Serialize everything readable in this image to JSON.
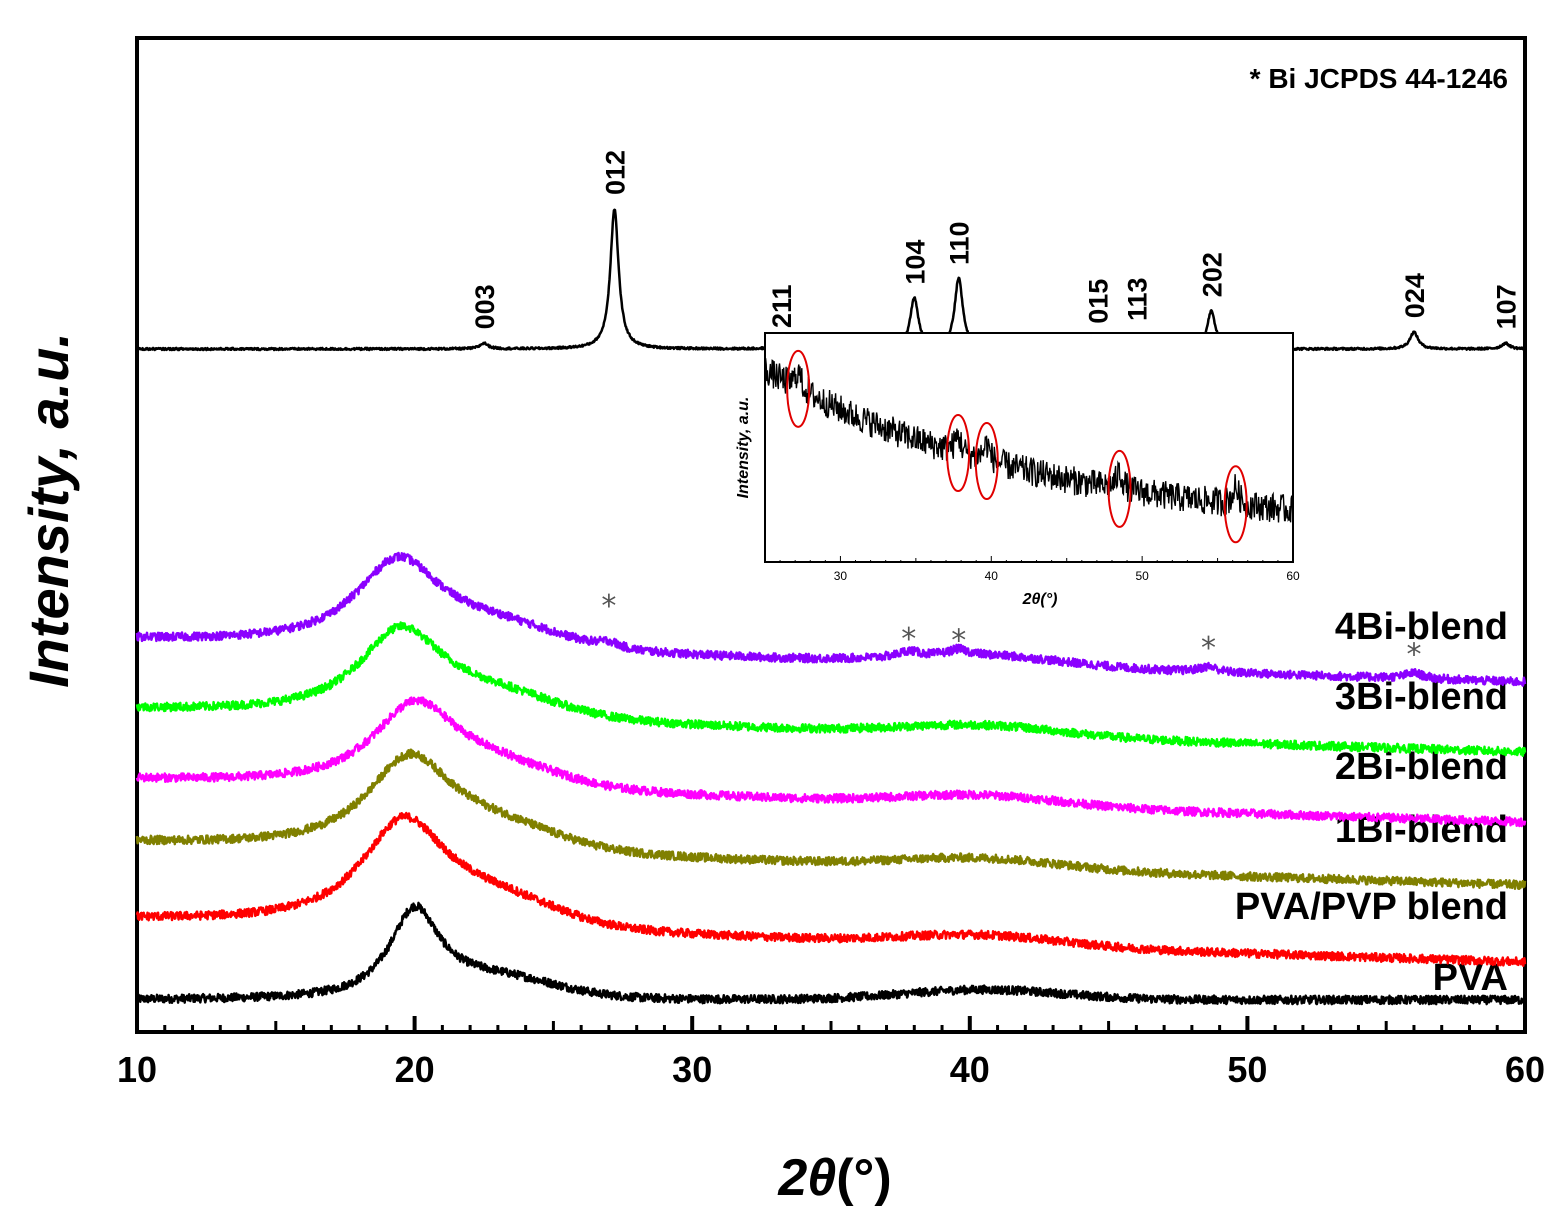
{
  "chart_data": {
    "type": "line",
    "title": "",
    "xlabel_italic": "2θ",
    "xlabel_unit": "(°)",
    "ylabel": "Intensity, a.u.",
    "xlim": [
      10,
      60
    ],
    "x_ticks": [
      10,
      20,
      30,
      40,
      50,
      60
    ],
    "reference_note": "* Bi JCPDS 44-1246",
    "series": [
      {
        "name": "PVA",
        "color": "#000000",
        "baseline": 0.0,
        "main_peak_2theta": 20.0,
        "main_peak_height": 0.62
      },
      {
        "name": "PVA/PVP blend",
        "color": "#ff0000",
        "baseline": 0.45,
        "main_peak_2theta": 19.6,
        "main_peak_height": 0.75
      },
      {
        "name": "1Bi-blend",
        "color": "#808000",
        "baseline": 1.0,
        "main_peak_2theta": 19.8,
        "main_peak_height": 0.65
      },
      {
        "name": "2Bi-blend",
        "color": "#ff00ff",
        "baseline": 1.45,
        "main_peak_2theta": 20.0,
        "main_peak_height": 0.58
      },
      {
        "name": "3Bi-blend",
        "color": "#00ff00",
        "baseline": 1.95,
        "main_peak_2theta": 19.5,
        "main_peak_height": 0.62
      },
      {
        "name": "4Bi-blend",
        "color": "#8b00ff",
        "baseline": 2.45,
        "main_peak_2theta": 19.4,
        "main_peak_height": 0.62
      },
      {
        "name": "Bi reference",
        "color": "#000000",
        "baseline": 4.65,
        "main_peak_2theta": 27.2,
        "main_peak_height": 1.0
      }
    ],
    "bi_peaks": [
      {
        "hkl": "003",
        "two_theta": 22.5,
        "rel_intensity": 0.04
      },
      {
        "hkl": "012",
        "two_theta": 27.2,
        "rel_intensity": 1.0
      },
      {
        "hkl": "211",
        "two_theta": 33.2,
        "rel_intensity": 0.05
      },
      {
        "hkl": "104",
        "two_theta": 38.0,
        "rel_intensity": 0.36
      },
      {
        "hkl": "110",
        "two_theta": 39.6,
        "rel_intensity": 0.5
      },
      {
        "hkl": "015",
        "two_theta": 44.6,
        "rel_intensity": 0.08
      },
      {
        "hkl": "113",
        "two_theta": 46.0,
        "rel_intensity": 0.1
      },
      {
        "hkl": "202",
        "two_theta": 48.7,
        "rel_intensity": 0.27
      },
      {
        "hkl": "024",
        "two_theta": 56.0,
        "rel_intensity": 0.12
      },
      {
        "hkl": "107",
        "two_theta": 59.3,
        "rel_intensity": 0.04
      }
    ],
    "star_marks_on_4Bi": [
      27.0,
      37.8,
      39.6,
      48.6,
      56.0
    ],
    "star_symbol": "*",
    "inset": {
      "xlabel_italic": "2θ",
      "xlabel_unit": "(°)",
      "ylabel": "Intensity, a.u.",
      "xlim": [
        25,
        60
      ],
      "x_ticks": [
        30,
        40,
        50,
        60
      ],
      "circled_peaks_2theta": [
        27.2,
        37.8,
        39.7,
        48.5,
        56.2
      ],
      "trend": "decreasing background from 25° to 60°"
    }
  }
}
